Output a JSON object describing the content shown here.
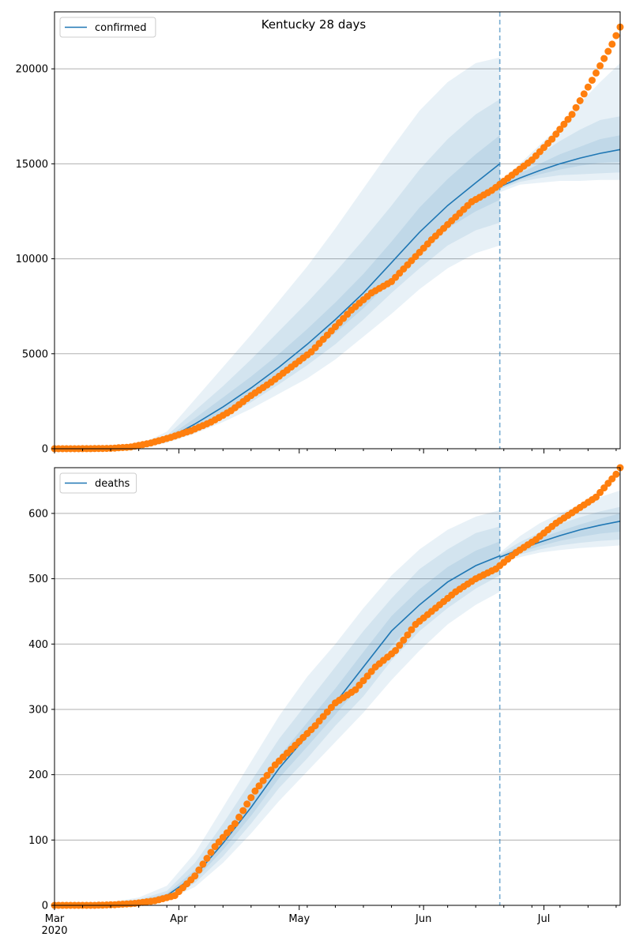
{
  "figure_title": "Kentucky 28 days",
  "colors": {
    "model": "#1f77b4",
    "observed": "#ff7f0e",
    "band": "#1f77b4",
    "grid": "#b0b0b0",
    "cutoff": "#1f77b4"
  },
  "chart_data": [
    {
      "type": "line",
      "legend": "confirmed",
      "legend_position": "upper-left",
      "grid": "horizontal",
      "x_start": "2020-03-01",
      "x_end": "2020-07-20",
      "cutoff_date": "2020-06-20",
      "ylim": [
        0,
        23000
      ],
      "yticks": [
        0,
        5000,
        10000,
        15000,
        20000
      ],
      "ytick_labels": [
        "0",
        "5000",
        "10000",
        "15000",
        "20000"
      ],
      "model": {
        "dates": [
          "2020-03-15",
          "2020-03-22",
          "2020-03-29",
          "2020-04-05",
          "2020-04-12",
          "2020-04-19",
          "2020-04-26",
          "2020-05-03",
          "2020-05-10",
          "2020-05-17",
          "2020-05-24",
          "2020-05-31",
          "2020-06-07",
          "2020-06-14",
          "2020-06-20"
        ],
        "median": [
          30,
          100,
          500,
          1300,
          2200,
          3200,
          4300,
          5500,
          6800,
          8200,
          9800,
          11400,
          12800,
          14000,
          15000
        ],
        "bands": [
          {
            "lower": [
              0,
              50,
              300,
              800,
              1400,
              2100,
              2900,
              3700,
              4700,
              5900,
              7100,
              8400,
              9500,
              10300,
              10700
            ],
            "upper": [
              100,
              200,
              900,
              2600,
              4300,
              6000,
              7800,
              9600,
              11600,
              13700,
              15800,
              17800,
              19300,
              20300,
              20600
            ]
          },
          {
            "lower": [
              10,
              70,
              380,
              950,
              1650,
              2450,
              3400,
              4400,
              5500,
              6800,
              8200,
              9500,
              10700,
              11500,
              11900
            ],
            "upper": [
              70,
              160,
              700,
              2000,
              3300,
              4700,
              6200,
              7700,
              9300,
              11000,
              12800,
              14700,
              16300,
              17600,
              18400
            ]
          },
          {
            "lower": [
              20,
              85,
              440,
              1100,
              1900,
              2800,
              3800,
              4900,
              6100,
              7400,
              8900,
              10300,
              11600,
              12500,
              13100
            ],
            "upper": [
              45,
              130,
              600,
              1600,
              2700,
              3800,
              5000,
              6300,
              7700,
              9200,
              10900,
              12700,
              14200,
              15500,
              16500
            ]
          }
        ]
      },
      "forecast": {
        "dates": [
          "2020-06-20",
          "2020-06-25",
          "2020-06-30",
          "2020-07-05",
          "2020-07-10",
          "2020-07-15",
          "2020-07-20"
        ],
        "median": [
          13800,
          14250,
          14650,
          15000,
          15300,
          15550,
          15750
        ],
        "bands": [
          {
            "lower": [
              13500,
              13900,
              14000,
              14100,
              14100,
              14150,
              14150
            ],
            "upper": [
              14000,
              15000,
              16000,
              17000,
              18200,
              19300,
              20300
            ]
          },
          {
            "lower": [
              13650,
              14050,
              14250,
              14400,
              14450,
              14500,
              14550
            ],
            "upper": [
              13950,
              14800,
              15500,
              16200,
              16800,
              17300,
              17500
            ]
          },
          {
            "lower": [
              13700,
              14150,
              14450,
              14700,
              14900,
              15050,
              15100
            ],
            "upper": [
              13900,
              14500,
              15000,
              15500,
              15900,
              16300,
              16500
            ]
          }
        ]
      },
      "observed": {
        "dates": [
          "2020-03-01",
          "2020-03-05",
          "2020-03-10",
          "2020-03-15",
          "2020-03-20",
          "2020-03-25",
          "2020-03-30",
          "2020-04-04",
          "2020-04-09",
          "2020-04-14",
          "2020-04-19",
          "2020-04-24",
          "2020-04-29",
          "2020-05-04",
          "2020-05-09",
          "2020-05-14",
          "2020-05-19",
          "2020-05-24",
          "2020-05-29",
          "2020-06-03",
          "2020-06-08",
          "2020-06-13",
          "2020-06-18",
          "2020-06-23",
          "2020-06-28",
          "2020-07-03",
          "2020-07-08",
          "2020-07-13",
          "2020-07-18",
          "2020-07-20"
        ],
        "values": [
          0,
          0,
          5,
          20,
          90,
          300,
          600,
          950,
          1400,
          2000,
          2800,
          3500,
          4300,
          5100,
          6200,
          7300,
          8200,
          8800,
          9900,
          11000,
          12000,
          13000,
          13600,
          14400,
          15200,
          16300,
          17600,
          19400,
          21300,
          22200
        ]
      }
    },
    {
      "type": "line",
      "legend": "deaths",
      "legend_position": "upper-left",
      "grid": "horizontal",
      "x_start": "2020-03-01",
      "x_end": "2020-07-20",
      "cutoff_date": "2020-06-20",
      "ylim": [
        0,
        670
      ],
      "yticks": [
        0,
        100,
        200,
        300,
        400,
        500,
        600
      ],
      "ytick_labels": [
        "0",
        "100",
        "200",
        "300",
        "400",
        "500",
        "600"
      ],
      "xtick_labels": [
        "Mar",
        "Apr",
        "May",
        "Jun",
        "Jul"
      ],
      "xtick_dates": [
        "2020-03-01",
        "2020-04-01",
        "2020-05-01",
        "2020-06-01",
        "2020-07-01"
      ],
      "x_year_label": "2020",
      "model": {
        "dates": [
          "2020-03-15",
          "2020-03-22",
          "2020-03-29",
          "2020-04-05",
          "2020-04-12",
          "2020-04-19",
          "2020-04-26",
          "2020-05-03",
          "2020-05-10",
          "2020-05-17",
          "2020-05-24",
          "2020-05-31",
          "2020-06-07",
          "2020-06-14",
          "2020-06-20"
        ],
        "median": [
          2,
          5,
          15,
          45,
          95,
          150,
          210,
          260,
          310,
          365,
          420,
          460,
          495,
          520,
          535
        ],
        "bands": [
          {
            "lower": [
              0,
              2,
              8,
              28,
              65,
              110,
              160,
              205,
              250,
              295,
              345,
              390,
              430,
              460,
              480
            ],
            "upper": [
              5,
              12,
              30,
              80,
              150,
              220,
              290,
              350,
              400,
              455,
              505,
              545,
              575,
              595,
              605
            ]
          },
          {
            "lower": [
              1,
              3,
              10,
              34,
              75,
              125,
              180,
              225,
              275,
              320,
              375,
              420,
              455,
              485,
              505
            ],
            "upper": [
              4,
              9,
              22,
              65,
              125,
              190,
              255,
              310,
              365,
              420,
              470,
              515,
              545,
              570,
              580
            ]
          },
          {
            "lower": [
              1,
              4,
              12,
              39,
              85,
              137,
              195,
              243,
              292,
              342,
              397,
              440,
              477,
              502,
              520
            ],
            "upper": [
              3,
              7,
              18,
              54,
              108,
              167,
              228,
              280,
              332,
              388,
              443,
              484,
              518,
              543,
              557
            ]
          }
        ]
      },
      "forecast": {
        "dates": [
          "2020-06-20",
          "2020-06-25",
          "2020-06-30",
          "2020-07-05",
          "2020-07-10",
          "2020-07-15",
          "2020-07-20"
        ],
        "median": [
          533,
          545,
          556,
          566,
          575,
          582,
          588
        ],
        "bands": [
          {
            "lower": [
              525,
              533,
              540,
              544,
              547,
              549,
              551
            ],
            "upper": [
              540,
              565,
              585,
              600,
              613,
              625,
              635
            ]
          },
          {
            "lower": [
              528,
              537,
              545,
              551,
              555,
              558,
              560
            ],
            "upper": [
              538,
              556,
              571,
              584,
              594,
              603,
              610
            ]
          },
          {
            "lower": [
              530,
              540,
              550,
              558,
              564,
              569,
              572
            ],
            "upper": [
              536,
              550,
              562,
              573,
              583,
              592,
              600
            ]
          }
        ]
      },
      "observed": {
        "dates": [
          "2020-03-01",
          "2020-03-06",
          "2020-03-11",
          "2020-03-16",
          "2020-03-21",
          "2020-03-26",
          "2020-03-31",
          "2020-04-05",
          "2020-04-10",
          "2020-04-15",
          "2020-04-20",
          "2020-04-25",
          "2020-04-30",
          "2020-05-05",
          "2020-05-10",
          "2020-05-15",
          "2020-05-20",
          "2020-05-25",
          "2020-05-30",
          "2020-06-04",
          "2020-06-09",
          "2020-06-14",
          "2020-06-19",
          "2020-06-24",
          "2020-06-29",
          "2020-07-04",
          "2020-07-09",
          "2020-07-14",
          "2020-07-19",
          "2020-07-20"
        ],
        "values": [
          0,
          0,
          0,
          1,
          3,
          7,
          15,
          45,
          90,
          125,
          175,
          215,
          245,
          275,
          310,
          330,
          365,
          390,
          430,
          455,
          480,
          500,
          515,
          540,
          560,
          585,
          605,
          625,
          660,
          670
        ]
      }
    }
  ]
}
